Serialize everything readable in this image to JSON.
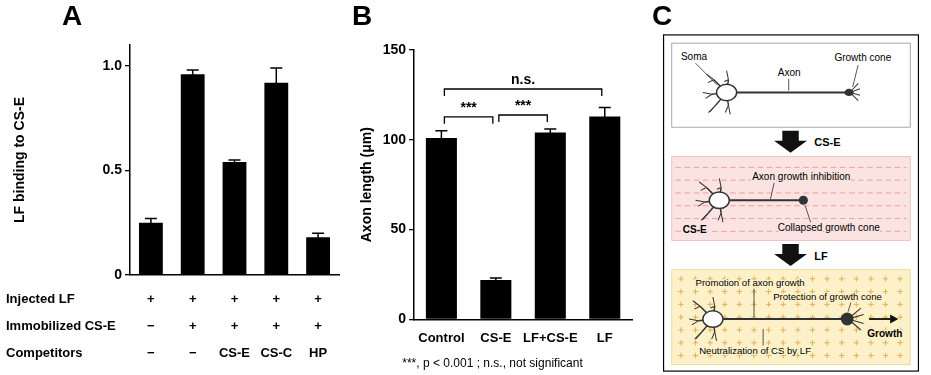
{
  "chart_data": [
    {
      "panel": "A",
      "type": "bar",
      "categories": [
        null,
        null,
        null,
        null,
        null
      ],
      "values": [
        0.25,
        0.96,
        0.54,
        0.92,
        0.18
      ],
      "errors": [
        0.02,
        0.02,
        0.01,
        0.07,
        0.02
      ],
      "y_label": "LF binding to CS-E",
      "ylim": [
        0,
        1.1
      ],
      "yticks": [
        0,
        0.5,
        {
          "value": 1,
          "label": "1.0"
        }
      ],
      "color": "#000000",
      "grid": false,
      "tick_labels": "y",
      "conditions": [
        {
          "label": "Injected LF",
          "marks": [
            "+",
            "+",
            "+",
            "+",
            "+"
          ]
        },
        {
          "label": "Immobilized CS-E",
          "marks": [
            "−",
            "+",
            "+",
            "+",
            "+"
          ]
        },
        {
          "label": "Competitors",
          "marks": [
            "−",
            "−",
            "CS-E",
            "CS-C",
            "HP"
          ]
        }
      ]
    },
    {
      "panel": "B",
      "type": "bar",
      "categories": [
        "Control",
        "CS-E",
        "LF+CS-E",
        "LF"
      ],
      "values": [
        101,
        22,
        104,
        113
      ],
      "errors": [
        4,
        1,
        2,
        5
      ],
      "y_label": "Axon length (μm)",
      "ylim": [
        0,
        150
      ],
      "yticks": [
        0,
        50,
        100,
        150
      ],
      "color": "#000000",
      "grid": false,
      "significance": [
        {
          "from": "Control",
          "to": "CS-E",
          "label": "***"
        },
        {
          "from": "CS-E",
          "to": "LF+CS-E",
          "label": "***"
        },
        {
          "from": "Control",
          "to": "LF",
          "label": "n.s."
        }
      ],
      "note": "***, p < 0.001 ; n.s., not significant"
    }
  ],
  "diagram": {
    "panel": "C",
    "stage1": {
      "soma": "Soma",
      "axon": "Axon",
      "growth_cone": "Growth cone"
    },
    "step1": "CS-E",
    "stage2": {
      "inhibition": "Axon growth inhibition",
      "collapsed": "Collapsed growth cone",
      "substrate": "CS-E"
    },
    "step2": "LF",
    "stage3": {
      "promotion": "Promotion of axon growth",
      "protection": "Protection of growth cone",
      "neutralization": "Neutralization of CS by LF",
      "growth": "Growth"
    }
  }
}
